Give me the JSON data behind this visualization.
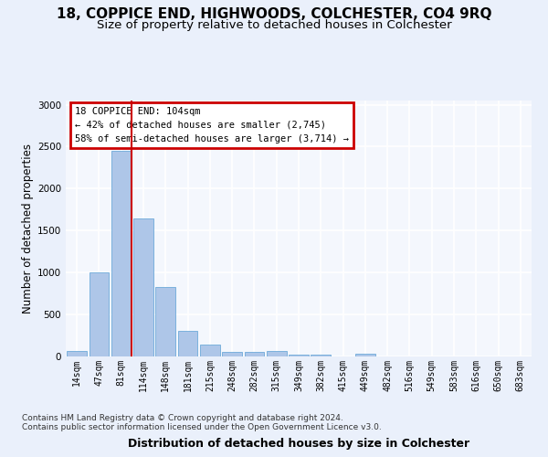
{
  "title": "18, COPPICE END, HIGHWOODS, COLCHESTER, CO4 9RQ",
  "subtitle": "Size of property relative to detached houses in Colchester",
  "xlabel": "Distribution of detached houses by size in Colchester",
  "ylabel": "Number of detached properties",
  "categories": [
    "14sqm",
    "47sqm",
    "81sqm",
    "114sqm",
    "148sqm",
    "181sqm",
    "215sqm",
    "248sqm",
    "282sqm",
    "315sqm",
    "349sqm",
    "382sqm",
    "415sqm",
    "449sqm",
    "482sqm",
    "516sqm",
    "549sqm",
    "583sqm",
    "616sqm",
    "650sqm",
    "683sqm"
  ],
  "values": [
    60,
    1000,
    2450,
    1650,
    825,
    300,
    140,
    55,
    55,
    60,
    20,
    20,
    0,
    30,
    0,
    0,
    0,
    0,
    0,
    0,
    0
  ],
  "bar_color": "#aec6e8",
  "bar_edge_color": "#5a9fd4",
  "vline_x_index": 2,
  "vline_color": "#cc0000",
  "annotation_text": "18 COPPICE END: 104sqm\n← 42% of detached houses are smaller (2,745)\n58% of semi-detached houses are larger (3,714) →",
  "annotation_box_color": "#cc0000",
  "ylim": [
    0,
    3050
  ],
  "yticks": [
    0,
    500,
    1000,
    1500,
    2000,
    2500,
    3000
  ],
  "footer_line1": "Contains HM Land Registry data © Crown copyright and database right 2024.",
  "footer_line2": "Contains public sector information licensed under the Open Government Licence v3.0.",
  "bg_color": "#eaf0fb",
  "plot_bg_color": "#f4f7fd",
  "grid_color": "#ffffff",
  "title_fontsize": 11,
  "subtitle_fontsize": 9.5,
  "xlabel_fontsize": 9,
  "ylabel_fontsize": 8.5,
  "tick_fontsize": 7,
  "footer_fontsize": 6.5,
  "annotation_fontsize": 7.5
}
